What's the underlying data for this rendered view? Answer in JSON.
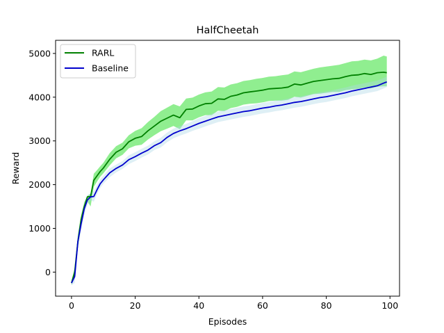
{
  "chart_data": {
    "type": "line",
    "title": "HalfCheetah",
    "xlabel": "Episodes",
    "ylabel": "Reward",
    "xlim": [
      -5,
      103
    ],
    "ylim": [
      -550,
      5300
    ],
    "xticks": [
      0,
      20,
      40,
      60,
      80,
      100
    ],
    "yticks": [
      0,
      1000,
      2000,
      3000,
      4000,
      5000
    ],
    "xtick_labels": [
      "0",
      "20",
      "40",
      "60",
      "80",
      "100"
    ],
    "ytick_labels": [
      "0",
      "1000",
      "2000",
      "3000",
      "4000",
      "5000"
    ],
    "grid": false,
    "legend_position": "upper-left",
    "x": [
      0,
      1,
      2,
      3,
      4,
      5,
      6,
      7,
      8,
      9,
      10,
      12,
      14,
      16,
      18,
      20,
      22,
      24,
      26,
      28,
      30,
      32,
      34,
      36,
      38,
      40,
      42,
      44,
      46,
      48,
      50,
      52,
      54,
      56,
      58,
      60,
      62,
      64,
      66,
      68,
      70,
      72,
      74,
      76,
      78,
      80,
      82,
      84,
      86,
      88,
      90,
      92,
      94,
      96,
      98,
      99
    ],
    "series": [
      {
        "name": "RARL",
        "color": "#008000",
        "band_color": "#90ee90",
        "values": [
          -250,
          0,
          700,
          1200,
          1500,
          1720,
          1730,
          2100,
          2200,
          2300,
          2380,
          2580,
          2740,
          2820,
          2980,
          3060,
          3100,
          3230,
          3340,
          3450,
          3520,
          3590,
          3530,
          3720,
          3730,
          3800,
          3850,
          3860,
          3960,
          3950,
          4020,
          4050,
          4100,
          4120,
          4140,
          4160,
          4190,
          4200,
          4210,
          4230,
          4300,
          4280,
          4320,
          4360,
          4380,
          4400,
          4420,
          4430,
          4470,
          4500,
          4510,
          4540,
          4520,
          4560,
          4570,
          4560
        ],
        "upper": [
          -200,
          100,
          850,
          1300,
          1600,
          1740,
          1800,
          2250,
          2330,
          2420,
          2500,
          2720,
          2880,
          2960,
          3130,
          3230,
          3290,
          3430,
          3550,
          3680,
          3760,
          3840,
          3790,
          3970,
          3990,
          4060,
          4110,
          4130,
          4230,
          4220,
          4290,
          4320,
          4370,
          4390,
          4420,
          4440,
          4470,
          4480,
          4500,
          4520,
          4590,
          4570,
          4610,
          4650,
          4680,
          4700,
          4720,
          4740,
          4780,
          4820,
          4830,
          4860,
          4840,
          4880,
          4950,
          4930
        ],
        "lower": [
          -300,
          -100,
          550,
          1050,
          1400,
          1620,
          1500,
          1950,
          2070,
          2180,
          2260,
          2440,
          2600,
          2680,
          2830,
          2890,
          2910,
          3030,
          3130,
          3220,
          3280,
          3340,
          3270,
          3470,
          3470,
          3540,
          3590,
          3590,
          3690,
          3680,
          3750,
          3780,
          3830,
          3850,
          3860,
          3880,
          3910,
          3920,
          3920,
          3940,
          4010,
          3990,
          4030,
          4070,
          4080,
          4100,
          4120,
          4120,
          4160,
          4180,
          4190,
          4220,
          4200,
          4240,
          4250,
          4250
        ]
      },
      {
        "name": "Baseline",
        "color": "#0000cd",
        "band_color": "#add8e6",
        "values": [
          -250,
          -100,
          700,
          1100,
          1450,
          1650,
          1720,
          1730,
          1880,
          2020,
          2110,
          2270,
          2370,
          2450,
          2570,
          2640,
          2720,
          2790,
          2890,
          2960,
          3080,
          3170,
          3230,
          3280,
          3340,
          3400,
          3450,
          3500,
          3550,
          3580,
          3610,
          3640,
          3670,
          3690,
          3720,
          3750,
          3770,
          3800,
          3820,
          3850,
          3880,
          3900,
          3930,
          3960,
          3990,
          4010,
          4040,
          4070,
          4100,
          4140,
          4170,
          4200,
          4230,
          4260,
          4320,
          4350
        ],
        "upper": [
          -200,
          50,
          850,
          1250,
          1600,
          1760,
          1800,
          1850,
          1980,
          2120,
          2200,
          2370,
          2460,
          2540,
          2670,
          2740,
          2820,
          2890,
          2990,
          3070,
          3190,
          3280,
          3340,
          3390,
          3450,
          3520,
          3570,
          3620,
          3670,
          3700,
          3730,
          3760,
          3790,
          3810,
          3840,
          3870,
          3890,
          3920,
          3940,
          3970,
          4000,
          4020,
          4050,
          4080,
          4110,
          4130,
          4160,
          4190,
          4220,
          4260,
          4290,
          4320,
          4350,
          4380,
          4440,
          4470
        ],
        "lower": [
          -300,
          -250,
          550,
          950,
          1300,
          1540,
          1640,
          1610,
          1780,
          1920,
          2020,
          2170,
          2280,
          2360,
          2470,
          2540,
          2620,
          2690,
          2790,
          2850,
          2970,
          3060,
          3120,
          3170,
          3230,
          3280,
          3330,
          3380,
          3430,
          3460,
          3490,
          3520,
          3550,
          3570,
          3600,
          3630,
          3650,
          3680,
          3700,
          3730,
          3760,
          3780,
          3810,
          3840,
          3870,
          3890,
          3920,
          3950,
          3980,
          4020,
          4050,
          4080,
          4110,
          4140,
          4200,
          4230
        ]
      }
    ]
  }
}
